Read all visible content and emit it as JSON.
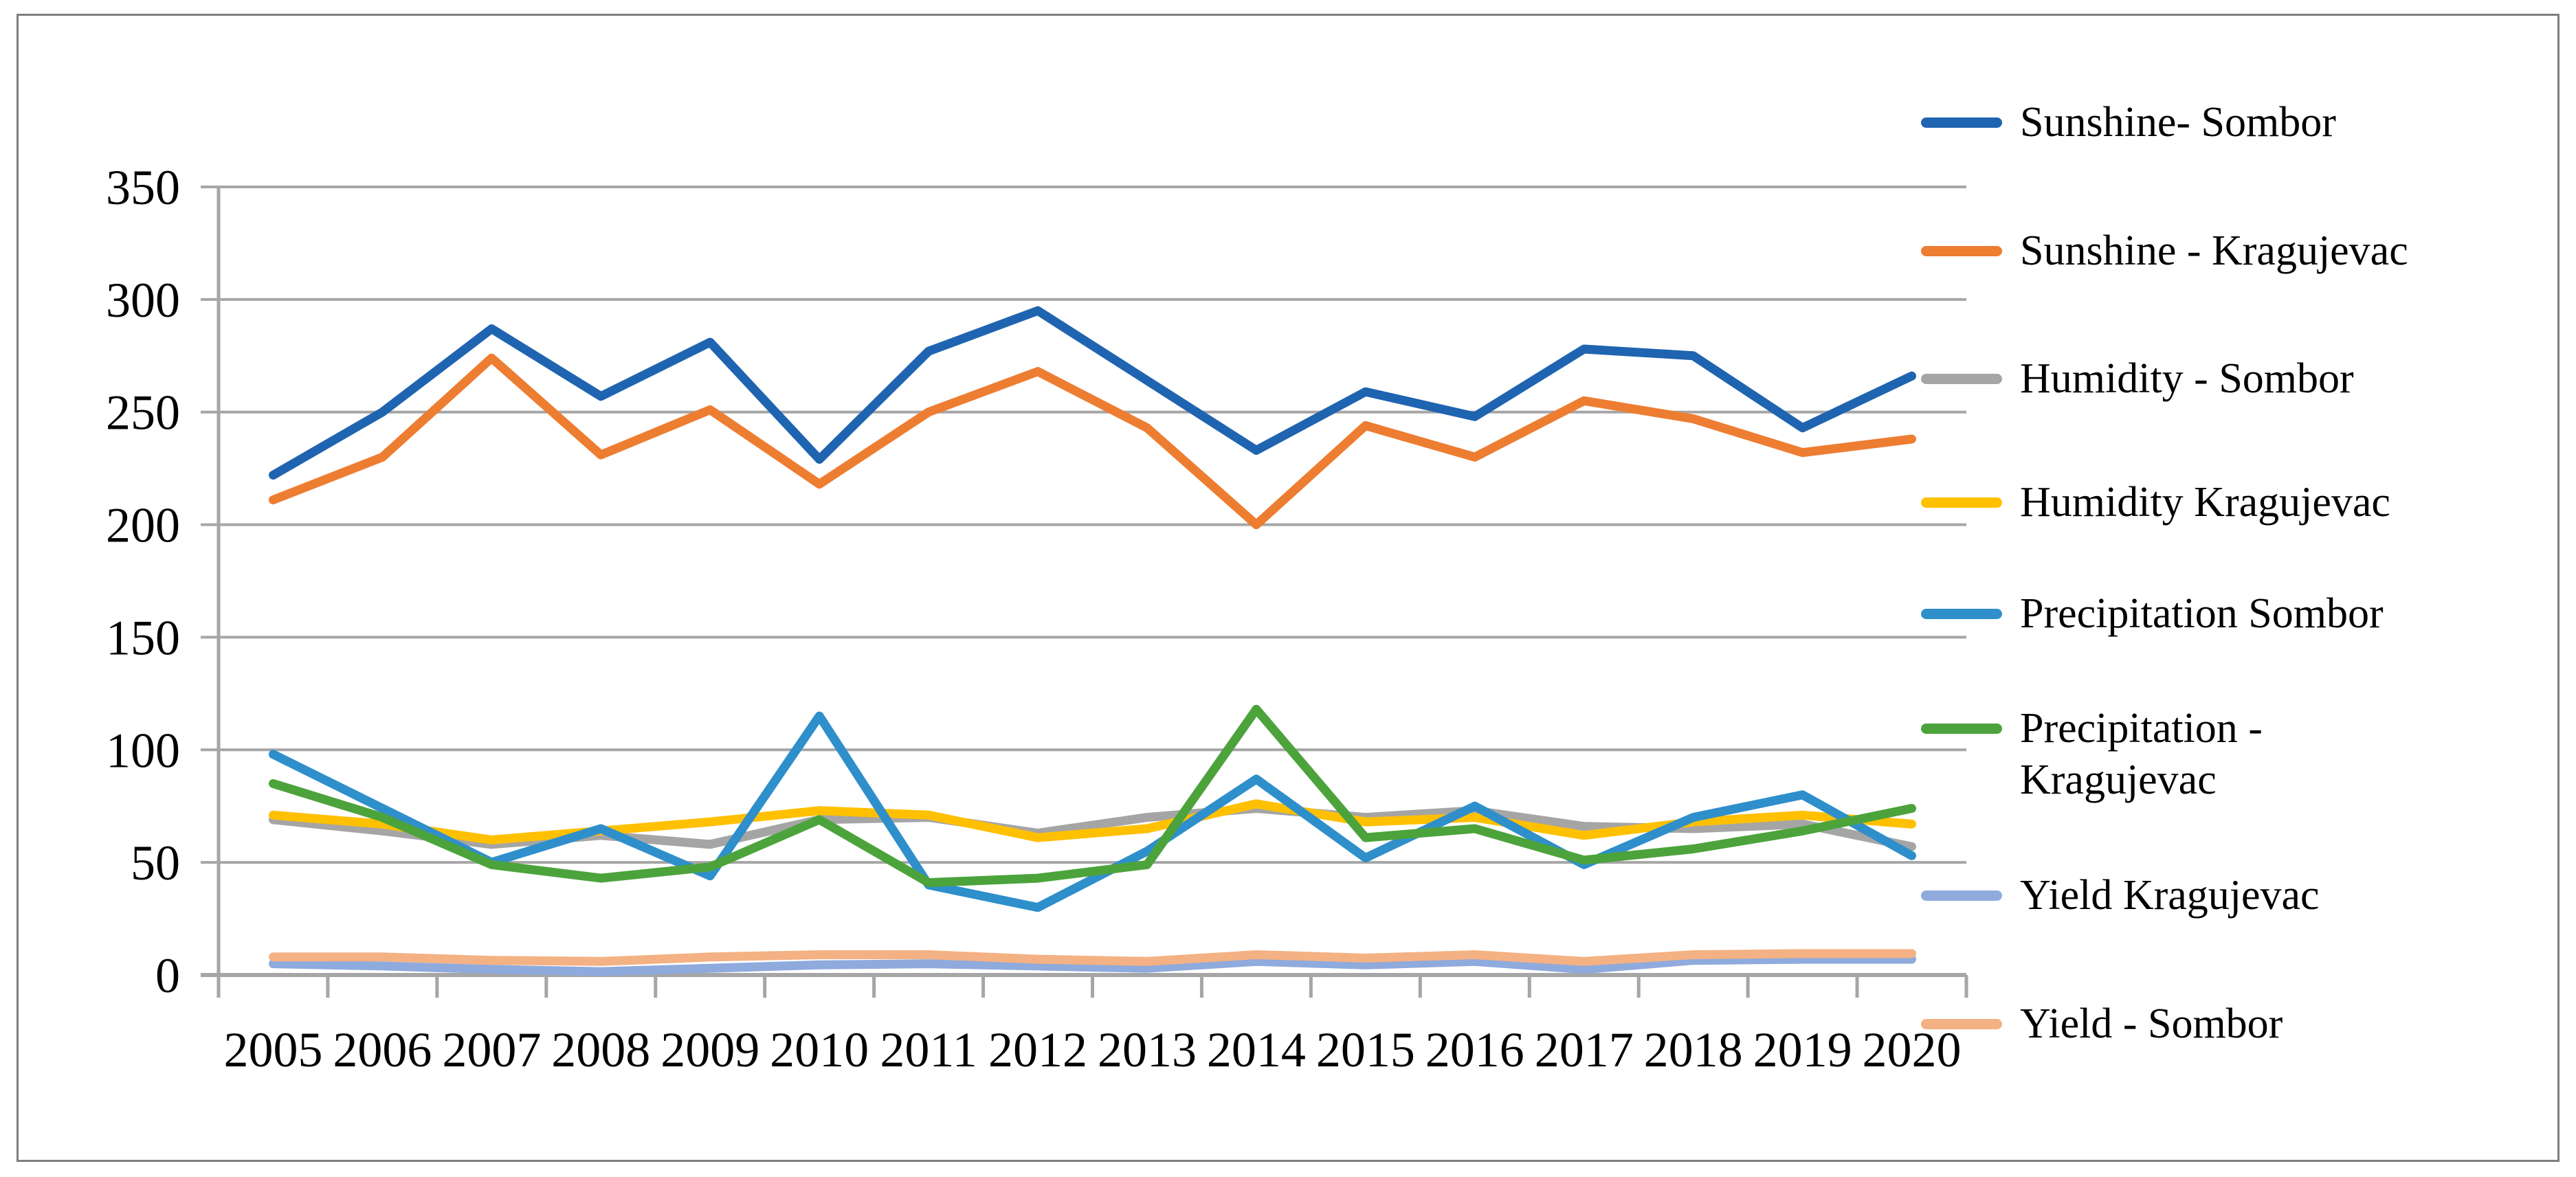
{
  "figure": {
    "description": "Line chart comparing climate variables and yield for Sombor and Kragujevac, 2005-2020"
  },
  "chart_data": {
    "type": "line",
    "x": [
      2005,
      2006,
      2007,
      2008,
      2009,
      2010,
      2011,
      2012,
      2013,
      2014,
      2015,
      2016,
      2017,
      2018,
      2019,
      2020
    ],
    "x_tick_labels": [
      "2005",
      "2006",
      "2007",
      "2008",
      "2009",
      "2010",
      "2011",
      "2012",
      "2013",
      "2014",
      "2015",
      "2016",
      "2017",
      "2018",
      "2019",
      "2020"
    ],
    "ylim": [
      0,
      350
    ],
    "y_ticks": [
      0,
      50,
      100,
      150,
      200,
      250,
      300,
      350
    ],
    "y_tick_labels": [
      "0",
      "50",
      "100",
      "150",
      "200",
      "250",
      "300",
      "350"
    ],
    "grid": "horizontal",
    "legend_position": "right",
    "series": [
      {
        "name": "Sunshine- Sombor",
        "label_lines": [
          "Sunshine- Sombor"
        ],
        "color": "#1F64B0",
        "values": [
          222,
          250,
          287,
          257,
          281,
          229,
          277,
          295,
          264,
          233,
          259,
          248,
          278,
          275,
          243,
          266
        ]
      },
      {
        "name": "Sunshine - Kragujevac",
        "label_lines": [
          "Sunshine - Kragujevac"
        ],
        "color": "#ED7D31",
        "values": [
          211,
          230,
          274,
          231,
          251,
          218,
          250,
          268,
          243,
          200,
          244,
          230,
          255,
          247,
          232,
          238
        ]
      },
      {
        "name": "Humidity - Sombor",
        "label_lines": [
          "Humidity - Sombor"
        ],
        "color": "#A5A5A5",
        "values": [
          69,
          64,
          58,
          62,
          58,
          69,
          70,
          63,
          70,
          74,
          70,
          73,
          66,
          65,
          67,
          57
        ]
      },
      {
        "name": "Humidity Kragujevac",
        "label_lines": [
          "Humidity Kragujevac"
        ],
        "color": "#FFC000",
        "values": [
          71,
          67,
          60,
          64,
          68,
          73,
          71,
          61,
          65,
          76,
          68,
          70,
          62,
          68,
          71,
          67
        ]
      },
      {
        "name": "Precipitation Sombor",
        "label_lines": [
          "Precipitation Sombor"
        ],
        "color": "#2E8FCB",
        "values": [
          98,
          74,
          50,
          65,
          44,
          115,
          40,
          30,
          55,
          87,
          52,
          75,
          49,
          70,
          80,
          53
        ]
      },
      {
        "name": "Precipitation - Kragujevac",
        "label_lines": [
          "Precipitation -",
          "Kragujevac"
        ],
        "color": "#4CA33C",
        "values": [
          85,
          70,
          49,
          43,
          48,
          69,
          41,
          43,
          49,
          118,
          61,
          65,
          51,
          56,
          64,
          74
        ]
      },
      {
        "name": "Yield Kragujevac",
        "label_lines": [
          "Yield Kragujevac"
        ],
        "color": "#8FAADC",
        "values": [
          5,
          4,
          2.5,
          1.5,
          3,
          4.5,
          5,
          4,
          3,
          6,
          4.5,
          6,
          2.5,
          6.5,
          7,
          7
        ]
      },
      {
        "name": "Yield - Sombor",
        "label_lines": [
          "Yield - Sombor"
        ],
        "color": "#F4B183",
        "values": [
          8,
          8,
          6.5,
          6,
          8,
          9,
          9,
          7,
          6,
          9,
          7.5,
          9,
          6,
          9,
          9.5,
          9.5
        ]
      }
    ]
  },
  "colors": {
    "gridline": "#A6A6A6",
    "axis": "#9A9A9A",
    "frame_border": "#7F7F7F",
    "text": "#000000",
    "background": "#FFFFFF"
  }
}
